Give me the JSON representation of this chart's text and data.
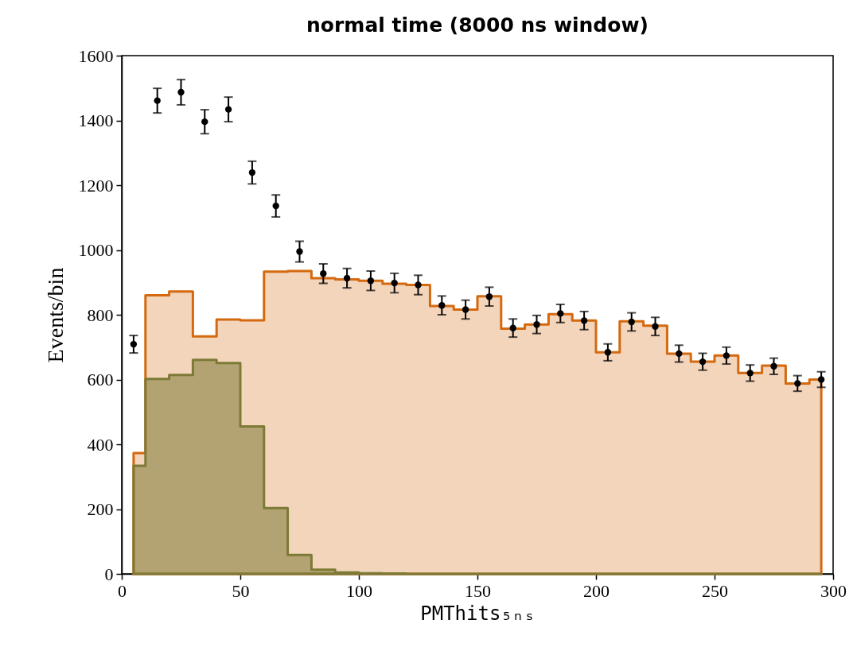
{
  "chart_data": {
    "type": "area",
    "title": "normal time (8000 ns window)",
    "xlabel": "PMThits₅ₙₛ",
    "ylabel": "Events/bin",
    "x": [
      5,
      15,
      25,
      35,
      45,
      55,
      65,
      75,
      85,
      95,
      105,
      115,
      125,
      135,
      145,
      155,
      165,
      175,
      185,
      195,
      205,
      215,
      225,
      235,
      245,
      255,
      265,
      275,
      285,
      295
    ],
    "series": [
      {
        "color": "#d4690f",
        "values": [
          373,
          860,
          872,
          733,
          785,
          783,
          933,
          935,
          913,
          909,
          905,
          896,
          892,
          827,
          816,
          857,
          757,
          770,
          802,
          782,
          684,
          780,
          766,
          680,
          655,
          674,
          620,
          643,
          588,
          600
        ]
      },
      {
        "color": "#7d7a36",
        "values": [
          334,
          602,
          614,
          661,
          651,
          455,
          203,
          58,
          13,
          4,
          2,
          1,
          0,
          0,
          0,
          0,
          0,
          0,
          0,
          0,
          0,
          0,
          0,
          0,
          0,
          0,
          0,
          0,
          0,
          0
        ]
      },
      {
        "type": "scatter",
        "color": "#000000",
        "marker": "circle",
        "values": [
          709,
          1461,
          1487,
          1396,
          1434,
          1239,
          1136,
          995,
          927,
          913,
          905,
          898,
          892,
          829,
          816,
          856,
          759,
          770,
          804,
          782,
          684,
          778,
          764,
          680,
          655,
          674,
          620,
          641,
          588,
          600
        ],
        "errors": [
          27,
          38,
          39,
          37,
          38,
          35,
          34,
          32,
          30,
          30,
          30,
          30,
          30,
          29,
          29,
          29,
          28,
          28,
          28,
          28,
          26,
          28,
          28,
          26,
          26,
          26,
          25,
          25,
          24,
          24
        ]
      }
    ],
    "xlim": [
      0,
      300
    ],
    "xticks": [
      0,
      50,
      100,
      150,
      200,
      250,
      300
    ],
    "ylim": [
      0,
      1600
    ],
    "yticks": [
      0,
      200,
      400,
      600,
      800,
      1000,
      1200,
      1400,
      1600
    ],
    "grid": false
  }
}
